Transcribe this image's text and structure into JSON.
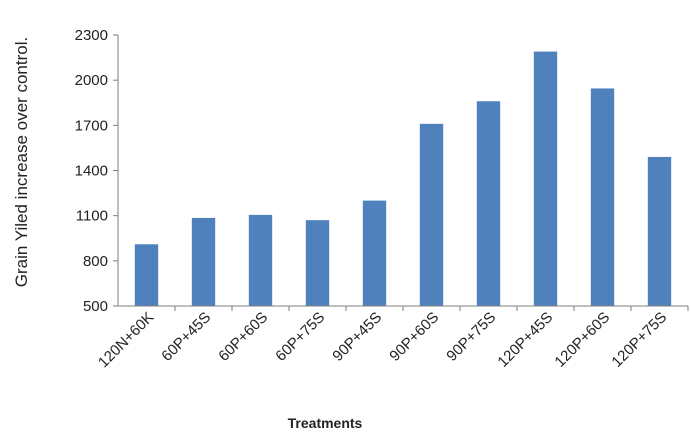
{
  "chart_data": {
    "type": "bar",
    "title": "",
    "xlabel": "Treatments",
    "ylabel": "Grain Yiled  increase over control.",
    "categories": [
      "120N+60K",
      "60P+45S",
      "60P+60S",
      "60P+75S",
      "90P+45S",
      "90P+60S",
      "90P+75S",
      "120P+45S",
      "120P+60S",
      "120P+75S"
    ],
    "series": [
      {
        "values": [
          910,
          1085,
          1105,
          1070,
          1200,
          1710,
          1860,
          2190,
          1945,
          1490
        ]
      }
    ],
    "ylim": [
      500,
      2300
    ],
    "yticks": [
      500,
      800,
      1100,
      1400,
      1700,
      2000,
      2300
    ],
    "bar_color": "#4f81bd",
    "grid": false,
    "legend": "none"
  }
}
